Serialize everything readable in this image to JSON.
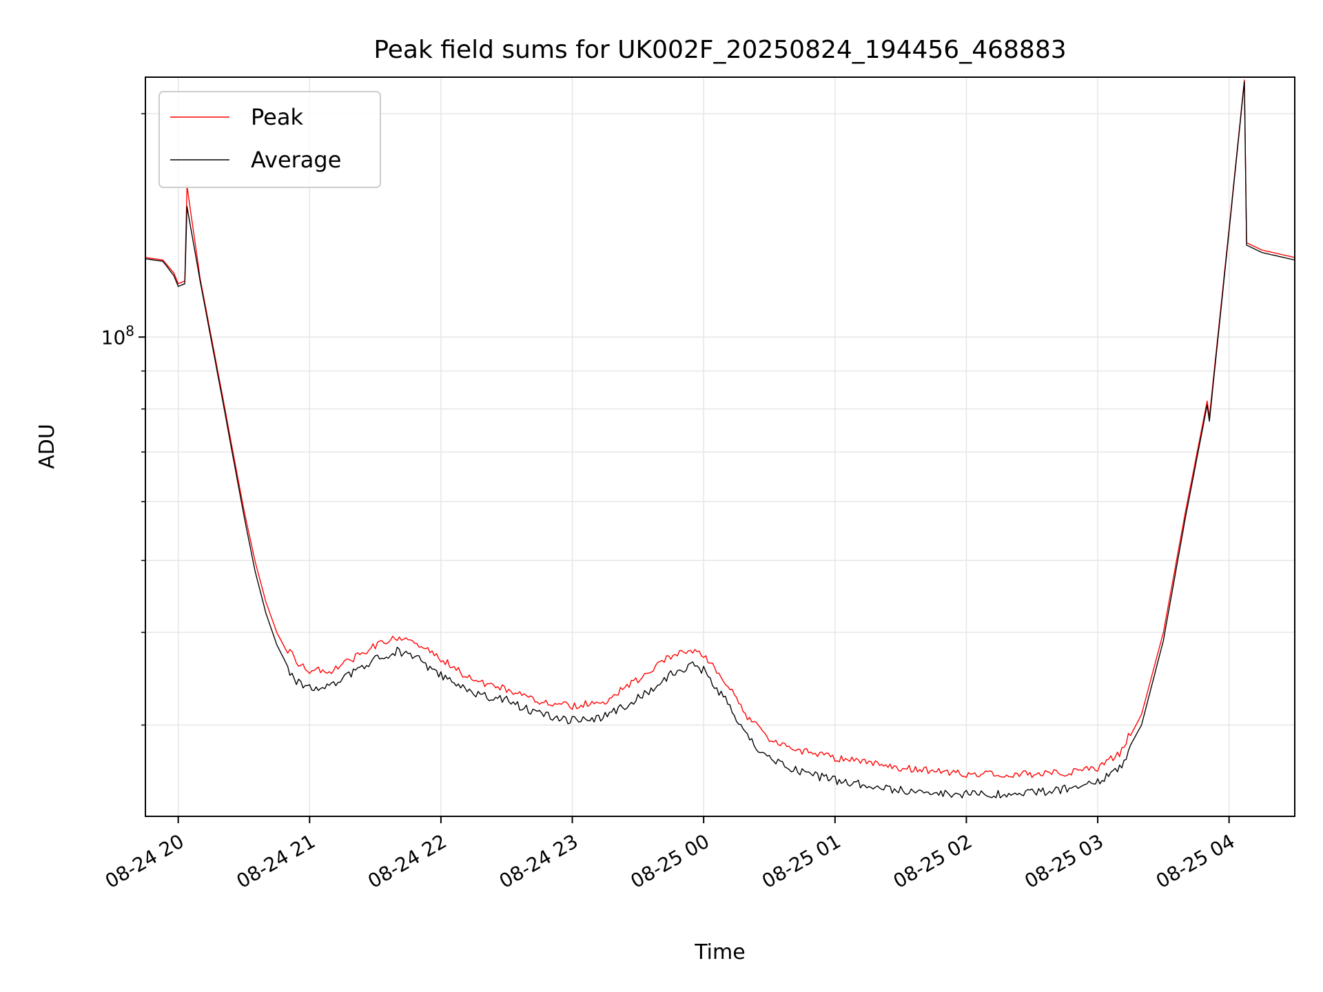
{
  "chart_data": {
    "type": "line",
    "title": "Peak field sums for UK002F_20250824_194456_468883",
    "xlabel": "Time",
    "ylabel": "ADU",
    "y_scale": "log",
    "y_tick_labels": [
      {
        "value": 100000000,
        "label": "10",
        "exponent": "8"
      }
    ],
    "ylim": [
      22600000,
      224000000
    ],
    "y_minor_ticks": [
      30000000,
      40000000,
      50000000,
      60000000,
      70000000,
      80000000,
      90000000,
      200000000
    ],
    "xlim": [
      "2025-08-24 19:45:00",
      "2025-08-25 04:30:00"
    ],
    "x_ticks": [
      {
        "value": "2025-08-24 20:00:00",
        "label": "08-24 20"
      },
      {
        "value": "2025-08-24 21:00:00",
        "label": "08-24 21"
      },
      {
        "value": "2025-08-24 22:00:00",
        "label": "08-24 22"
      },
      {
        "value": "2025-08-24 23:00:00",
        "label": "08-24 23"
      },
      {
        "value": "2025-08-25 00:00:00",
        "label": "08-25 00"
      },
      {
        "value": "2025-08-25 01:00:00",
        "label": "08-25 01"
      },
      {
        "value": "2025-08-25 02:00:00",
        "label": "08-25 02"
      },
      {
        "value": "2025-08-25 03:00:00",
        "label": "08-25 03"
      },
      {
        "value": "2025-08-25 04:00:00",
        "label": "08-25 04"
      }
    ],
    "grid": true,
    "legend_position": "top-left",
    "series": [
      {
        "name": "Peak",
        "color": "#ff0000",
        "points": [
          [
            "2025-08-24 19:45",
            128000000
          ],
          [
            "2025-08-24 19:53",
            127000000
          ],
          [
            "2025-08-24 19:58",
            122000000
          ],
          [
            "2025-08-24 20:00",
            118000000
          ],
          [
            "2025-08-24 20:03",
            119000000
          ],
          [
            "2025-08-24 20:04",
            160000000
          ],
          [
            "2025-08-24 20:10",
            120000000
          ],
          [
            "2025-08-24 20:20",
            84000000
          ],
          [
            "2025-08-24 20:25",
            70000000
          ],
          [
            "2025-08-24 20:30",
            58500000
          ],
          [
            "2025-08-24 20:35",
            50000000
          ],
          [
            "2025-08-24 20:40",
            44000000
          ],
          [
            "2025-08-24 20:45",
            40000000
          ],
          [
            "2025-08-24 20:50",
            37500000
          ],
          [
            "2025-08-24 20:55",
            36000000
          ],
          [
            "2025-08-24 21:00",
            35200000
          ],
          [
            "2025-08-24 21:10",
            35200000
          ],
          [
            "2025-08-24 21:20",
            36500000
          ],
          [
            "2025-08-24 21:30",
            38000000
          ],
          [
            "2025-08-24 21:40",
            39000000
          ],
          [
            "2025-08-24 21:50",
            38200000
          ],
          [
            "2025-08-24 22:00",
            36500000
          ],
          [
            "2025-08-24 22:10",
            34800000
          ],
          [
            "2025-08-24 22:20",
            33800000
          ],
          [
            "2025-08-24 22:30",
            33200000
          ],
          [
            "2025-08-24 22:45",
            32000000
          ],
          [
            "2025-08-24 23:00",
            31500000
          ],
          [
            "2025-08-24 23:15",
            32000000
          ],
          [
            "2025-08-24 23:30",
            34200000
          ],
          [
            "2025-08-24 23:45",
            36800000
          ],
          [
            "2025-08-24 23:55",
            37500000
          ],
          [
            "2025-08-25 00:00",
            37000000
          ],
          [
            "2025-08-25 00:10",
            34000000
          ],
          [
            "2025-08-25 00:20",
            30500000
          ],
          [
            "2025-08-25 00:30",
            28500000
          ],
          [
            "2025-08-25 00:45",
            27400000
          ],
          [
            "2025-08-25 01:00",
            26800000
          ],
          [
            "2025-08-25 01:30",
            26000000
          ],
          [
            "2025-08-25 02:00",
            25500000
          ],
          [
            "2025-08-25 02:30",
            25500000
          ],
          [
            "2025-08-25 02:45",
            25600000
          ],
          [
            "2025-08-25 03:00",
            26000000
          ],
          [
            "2025-08-25 03:10",
            27200000
          ],
          [
            "2025-08-25 03:20",
            31000000
          ],
          [
            "2025-08-25 03:30",
            40000000
          ],
          [
            "2025-08-25 03:40",
            58000000
          ],
          [
            "2025-08-25 03:50",
            82000000
          ],
          [
            "2025-08-25 03:51",
            78000000
          ],
          [
            "2025-08-25 04:00",
            140000000
          ],
          [
            "2025-08-25 04:07",
            222000000
          ],
          [
            "2025-08-25 04:08",
            134000000
          ],
          [
            "2025-08-25 04:15",
            131000000
          ],
          [
            "2025-08-25 04:30",
            128000000
          ]
        ]
      },
      {
        "name": "Average",
        "color": "#000000",
        "points": [
          [
            "2025-08-24 19:45",
            127500000
          ],
          [
            "2025-08-24 19:53",
            126500000
          ],
          [
            "2025-08-24 19:58",
            121000000
          ],
          [
            "2025-08-24 20:00",
            117000000
          ],
          [
            "2025-08-24 20:03",
            118000000
          ],
          [
            "2025-08-24 20:04",
            150000000
          ],
          [
            "2025-08-24 20:10",
            119000000
          ],
          [
            "2025-08-24 20:20",
            83000000
          ],
          [
            "2025-08-24 20:25",
            69000000
          ],
          [
            "2025-08-24 20:30",
            57500000
          ],
          [
            "2025-08-24 20:35",
            48500000
          ],
          [
            "2025-08-24 20:40",
            42500000
          ],
          [
            "2025-08-24 20:45",
            38500000
          ],
          [
            "2025-08-24 20:50",
            36000000
          ],
          [
            "2025-08-24 20:55",
            34600000
          ],
          [
            "2025-08-24 21:00",
            34000000
          ],
          [
            "2025-08-24 21:10",
            34200000
          ],
          [
            "2025-08-24 21:20",
            35700000
          ],
          [
            "2025-08-24 21:30",
            37200000
          ],
          [
            "2025-08-24 21:40",
            38200000
          ],
          [
            "2025-08-24 21:50",
            37200000
          ],
          [
            "2025-08-24 22:00",
            35400000
          ],
          [
            "2025-08-24 22:10",
            34000000
          ],
          [
            "2025-08-24 22:20",
            33200000
          ],
          [
            "2025-08-24 22:30",
            32800000
          ],
          [
            "2025-08-24 22:45",
            31400000
          ],
          [
            "2025-08-24 23:00",
            30800000
          ],
          [
            "2025-08-24 23:15",
            31200000
          ],
          [
            "2025-08-24 23:30",
            33000000
          ],
          [
            "2025-08-24 23:45",
            35500000
          ],
          [
            "2025-08-24 23:55",
            36500000
          ],
          [
            "2025-08-25 00:00",
            36000000
          ],
          [
            "2025-08-25 00:10",
            32800000
          ],
          [
            "2025-08-25 00:20",
            29200000
          ],
          [
            "2025-08-25 00:30",
            27300000
          ],
          [
            "2025-08-25 00:45",
            26200000
          ],
          [
            "2025-08-25 01:00",
            25600000
          ],
          [
            "2025-08-25 01:30",
            24800000
          ],
          [
            "2025-08-25 02:00",
            24500000
          ],
          [
            "2025-08-25 02:30",
            24600000
          ],
          [
            "2025-08-25 02:45",
            24900000
          ],
          [
            "2025-08-25 03:00",
            25400000
          ],
          [
            "2025-08-25 03:10",
            26500000
          ],
          [
            "2025-08-25 03:20",
            30000000
          ],
          [
            "2025-08-25 03:30",
            39000000
          ],
          [
            "2025-08-25 03:40",
            57000000
          ],
          [
            "2025-08-25 03:50",
            81000000
          ],
          [
            "2025-08-25 03:51",
            77000000
          ],
          [
            "2025-08-25 04:00",
            139000000
          ],
          [
            "2025-08-25 04:07",
            221000000
          ],
          [
            "2025-08-25 04:08",
            133000000
          ],
          [
            "2025-08-25 04:15",
            130000000
          ],
          [
            "2025-08-25 04:30",
            127000000
          ]
        ]
      }
    ],
    "grid_color": "#e6e6e6",
    "axis_color": "#000000"
  }
}
